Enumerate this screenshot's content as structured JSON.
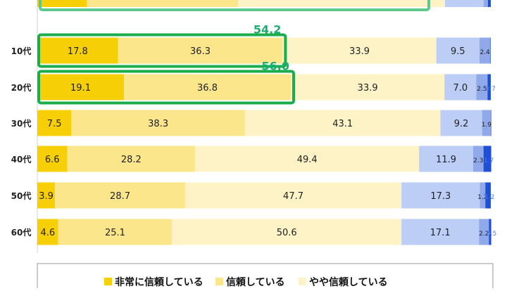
{
  "chart_data": {
    "type": "bar",
    "orientation": "horizontal",
    "stacked": "100%",
    "categories": [
      "10代",
      "20代",
      "30代",
      "40代",
      "50代",
      "60代"
    ],
    "series": [
      {
        "name": "非常に信頼している",
        "values": [
          17.8,
          19.1,
          7.5,
          6.6,
          3.9,
          4.6
        ],
        "color": "#f7cf07"
      },
      {
        "name": "信頼している",
        "values": [
          36.3,
          36.8,
          38.3,
          28.2,
          28.7,
          25.1
        ],
        "color": "#fbe68b"
      },
      {
        "name": "やや信頼している",
        "values": [
          33.9,
          33.9,
          43.1,
          49.4,
          47.7,
          50.6
        ],
        "color": "#fdf3c6"
      },
      {
        "values": [
          9.5,
          7.0,
          9.2,
          11.9,
          17.3,
          17.1
        ],
        "color": "#bccdf6"
      },
      {
        "values": [
          2.4,
          2.5,
          1.9,
          2.3,
          1.2,
          2.2
        ],
        "color": "#8fa9ea"
      },
      {
        "values": [
          0.1,
          0.7,
          0.1,
          1.7,
          1.2,
          0.5
        ],
        "color": "#1f4fd6"
      }
    ],
    "segment_labels": [
      [
        "17.8",
        "36.3",
        "33.9",
        "9.5",
        "2.4",
        ""
      ],
      [
        "19.1",
        "36.8",
        "33.9",
        "7.0",
        "2.5",
        "0.7"
      ],
      [
        "7.5",
        "38.3",
        "43.1",
        "9.2",
        "1.9",
        ""
      ],
      [
        "6.6",
        "28.2",
        "49.4",
        "11.9",
        "2.3",
        "1.7"
      ],
      [
        "3.9",
        "28.7",
        "47.7",
        "17.3",
        "1.2",
        "1.2"
      ],
      [
        "4.6",
        "25.1",
        "50.6",
        "17.1",
        "2.2",
        "0.5"
      ]
    ],
    "highlights": [
      {
        "category": "10代",
        "sum_of_first_series": 2,
        "label": "54.2"
      },
      {
        "category": "20代",
        "sum_of_first_series": 2,
        "label": "56.0"
      }
    ],
    "xlim": [
      0,
      100
    ],
    "legend": "bottom",
    "highlight_color": "#1aad4b",
    "highlight_label_color": "#1aad70"
  }
}
